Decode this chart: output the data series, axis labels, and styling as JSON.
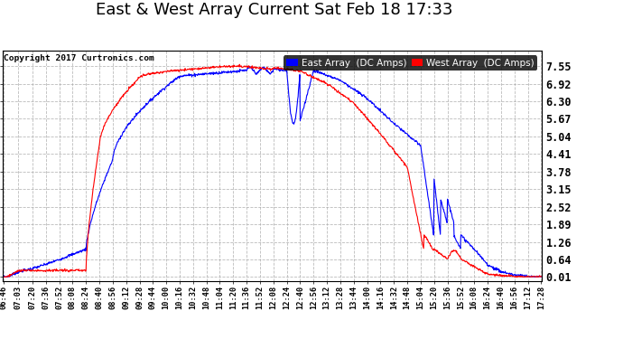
{
  "title": "East & West Array Current Sat Feb 18 17:33",
  "copyright": "Copyright 2017 Curtronics.com",
  "east_color": "#0000ff",
  "west_color": "#ff0000",
  "east_label": "East Array  (DC Amps)",
  "west_label": "West Array  (DC Amps)",
  "yticks": [
    0.01,
    0.64,
    1.26,
    1.89,
    2.52,
    3.15,
    3.78,
    4.41,
    5.04,
    5.67,
    6.3,
    6.92,
    7.55
  ],
  "ylim": [
    -0.15,
    8.1
  ],
  "outer_bg": "#ffffff",
  "plot_bg": "#ffffff",
  "grid_color": "#aaaaaa",
  "title_fontsize": 13,
  "tick_fontsize": 7,
  "legend_fontsize": 7.5
}
